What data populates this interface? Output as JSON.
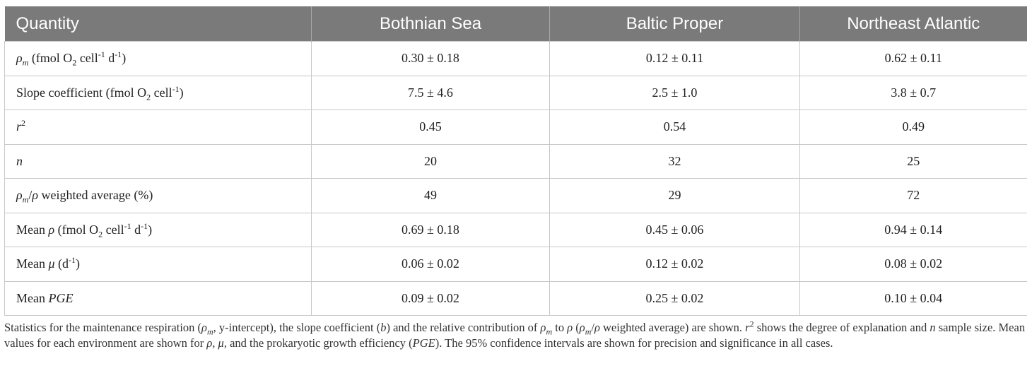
{
  "table": {
    "headers": [
      "Quantity",
      "Bothnian Sea",
      "Baltic Proper",
      "Northeast Atlantic"
    ],
    "rows": [
      {
        "label_parts": [
          {
            "text": "ρ",
            "style": "italic"
          },
          {
            "text": "m",
            "style": "italic-sub"
          },
          {
            "text": " (fmol O"
          },
          {
            "text": "2",
            "style": "sub"
          },
          {
            "text": " cell"
          },
          {
            "text": "-1",
            "style": "sup"
          },
          {
            "text": " d"
          },
          {
            "text": "-1",
            "style": "sup"
          },
          {
            "text": ")"
          }
        ],
        "values": [
          "0.30 ± 0.18",
          "0.12 ± 0.11",
          "0.62 ± 0.11"
        ]
      },
      {
        "label_parts": [
          {
            "text": "Slope coefficient (fmol O"
          },
          {
            "text": "2",
            "style": "sub"
          },
          {
            "text": " cell"
          },
          {
            "text": "-1",
            "style": "sup"
          },
          {
            "text": ")"
          }
        ],
        "values": [
          "7.5 ± 4.6",
          "2.5 ± 1.0",
          "3.8 ± 0.7"
        ]
      },
      {
        "label_parts": [
          {
            "text": "r",
            "style": "italic"
          },
          {
            "text": "2",
            "style": "sup"
          }
        ],
        "values": [
          "0.45",
          "0.54",
          "0.49"
        ]
      },
      {
        "label_parts": [
          {
            "text": "n",
            "style": "italic"
          }
        ],
        "values": [
          "20",
          "32",
          "25"
        ]
      },
      {
        "label_parts": [
          {
            "text": "ρ",
            "style": "italic"
          },
          {
            "text": "m",
            "style": "italic-sub"
          },
          {
            "text": "/"
          },
          {
            "text": "ρ",
            "style": "italic"
          },
          {
            "text": " weighted average (%)"
          }
        ],
        "values": [
          "49",
          "29",
          "72"
        ]
      },
      {
        "label_parts": [
          {
            "text": "Mean "
          },
          {
            "text": "ρ",
            "style": "italic"
          },
          {
            "text": " (fmol O"
          },
          {
            "text": "2",
            "style": "sub"
          },
          {
            "text": " cell"
          },
          {
            "text": "-1",
            "style": "sup"
          },
          {
            "text": " d"
          },
          {
            "text": "-1",
            "style": "sup"
          },
          {
            "text": ")"
          }
        ],
        "values": [
          "0.69 ± 0.18",
          "0.45 ± 0.06",
          "0.94 ± 0.14"
        ]
      },
      {
        "label_parts": [
          {
            "text": "Mean "
          },
          {
            "text": "μ",
            "style": "italic"
          },
          {
            "text": " (d"
          },
          {
            "text": "-1",
            "style": "sup"
          },
          {
            "text": ")"
          }
        ],
        "values": [
          "0.06 ± 0.02",
          "0.12 ± 0.02",
          "0.08 ± 0.02"
        ]
      },
      {
        "label_parts": [
          {
            "text": "Mean "
          },
          {
            "text": "PGE",
            "style": "italic"
          }
        ],
        "values": [
          "0.09 ± 0.02",
          "0.25 ± 0.02",
          "0.10 ± 0.04"
        ]
      }
    ]
  },
  "caption_parts": [
    {
      "text": "Statistics for the maintenance respiration ("
    },
    {
      "text": "ρ",
      "style": "italic"
    },
    {
      "text": "m",
      "style": "italic-sub"
    },
    {
      "text": ", y-intercept), the slope coefficient ("
    },
    {
      "text": "b",
      "style": "italic"
    },
    {
      "text": ") and the relative contribution of "
    },
    {
      "text": "ρ",
      "style": "italic"
    },
    {
      "text": "m",
      "style": "italic-sub"
    },
    {
      "text": " to "
    },
    {
      "text": "ρ",
      "style": "italic"
    },
    {
      "text": " ("
    },
    {
      "text": "ρ",
      "style": "italic"
    },
    {
      "text": "m",
      "style": "italic-sub"
    },
    {
      "text": "/"
    },
    {
      "text": "ρ",
      "style": "italic"
    },
    {
      "text": " weighted average) are shown. "
    },
    {
      "text": "r",
      "style": "italic"
    },
    {
      "text": "2",
      "style": "sup"
    },
    {
      "text": " shows the degree of explanation and "
    },
    {
      "text": "n",
      "style": "italic"
    },
    {
      "text": " sample size. Mean values for each environment are shown for "
    },
    {
      "text": "ρ",
      "style": "italic"
    },
    {
      "text": ", "
    },
    {
      "text": "μ",
      "style": "italic"
    },
    {
      "text": ", and the prokaryotic growth efficiency ("
    },
    {
      "text": "PGE",
      "style": "italic"
    },
    {
      "text": "). The 95% confidence intervals are shown for precision and significance in all cases."
    }
  ],
  "colors": {
    "header_background": "#7a7a7a",
    "header_text": "#ffffff",
    "grid_line": "#c8c8c8",
    "body_text": "#222222"
  }
}
